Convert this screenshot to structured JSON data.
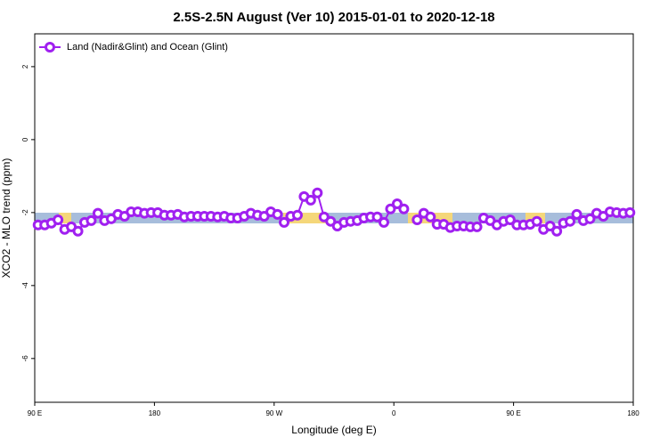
{
  "chart_data": {
    "type": "line",
    "title": "2.5S-2.5N August (Ver 10)   2015-01-01 to 2020-12-18",
    "x_label": "Longitude (deg E)",
    "y_label": "XCO2 - MLO trend (ppm)",
    "x": [
      92.5,
      97.5,
      102.5,
      107.5,
      112.5,
      117.5,
      122.5,
      127.5,
      132.5,
      137.5,
      142.5,
      147.5,
      152.5,
      157.5,
      162.5,
      167.5,
      172.5,
      177.5,
      182.5,
      187.5,
      192.5,
      197.5,
      202.5,
      207.5,
      212.5,
      217.5,
      222.5,
      227.5,
      232.5,
      237.5,
      242.5,
      247.5,
      252.5,
      257.5,
      262.5,
      267.5,
      272.5,
      277.5,
      282.5,
      287.5,
      292.5,
      297.5,
      302.5,
      307.5,
      312.5,
      317.5,
      322.5,
      327.5,
      332.5,
      337.5,
      342.5,
      347.5,
      352.5,
      357.5,
      362.5,
      367.5,
      372.5,
      377.5,
      382.5,
      387.5,
      392.5,
      397.5,
      402.5,
      407.5,
      412.5,
      417.5,
      422.5,
      427.5,
      432.5,
      437.5,
      442.5,
      447.5,
      452.5,
      457.5,
      462.5,
      467.5,
      472.5,
      477.5,
      482.5,
      487.5,
      492.5,
      497.5,
      502.5,
      507.5,
      512.5,
      517.5,
      522.5,
      527.5,
      532.5,
      537.5
    ],
    "series": [
      {
        "name": "Land (Nadir&Glint) and Ocean (Glint)",
        "color": "#a020f0",
        "values": [
          -2.34,
          -2.34,
          -2.29,
          -2.2,
          -2.46,
          -2.39,
          -2.51,
          -2.27,
          -2.22,
          -2.02,
          -2.22,
          -2.17,
          -2.05,
          -2.1,
          -1.98,
          -1.98,
          -2.02,
          -2.0,
          -2.0,
          -2.07,
          -2.07,
          -2.05,
          -2.12,
          -2.1,
          -2.1,
          -2.1,
          -2.1,
          -2.12,
          -2.1,
          -2.15,
          -2.15,
          -2.1,
          -2.02,
          -2.07,
          -2.1,
          -1.98,
          -2.05,
          -2.27,
          -2.1,
          -2.07,
          -1.56,
          -1.66,
          -1.46,
          -2.12,
          -2.24,
          -2.37,
          -2.27,
          -2.24,
          -2.22,
          -2.15,
          -2.12,
          -2.12,
          -2.27,
          -1.9,
          -1.76,
          -1.9,
          null,
          -2.2,
          -2.02,
          -2.12,
          -2.32,
          -2.32,
          -2.41,
          -2.37,
          -2.37,
          -2.39,
          -2.39,
          -2.15,
          -2.22,
          -2.34,
          -2.24,
          -2.2,
          -2.34,
          -2.34,
          -2.32,
          -2.24,
          -2.46,
          -2.37,
          -2.51,
          -2.29,
          -2.24,
          -2.05,
          -2.22,
          -2.17,
          -2.02,
          -2.1,
          -1.98,
          -2.0,
          -2.02,
          -2.0
        ]
      }
    ],
    "xlim": [
      90,
      540
    ],
    "xticks": [
      {
        "value": 90,
        "label": "90 E"
      },
      180,
      {
        "value": 270,
        "label": "90 W"
      },
      {
        "value": 360,
        "label": "0"
      },
      {
        "value": 450,
        "label": "90 E"
      },
      {
        "value": 540,
        "label": "180"
      }
    ],
    "ylim": [
      -7.2,
      2.9
    ],
    "yticks": [
      2,
      0,
      -2,
      -4,
      -6
    ],
    "legend": "top-left"
  }
}
